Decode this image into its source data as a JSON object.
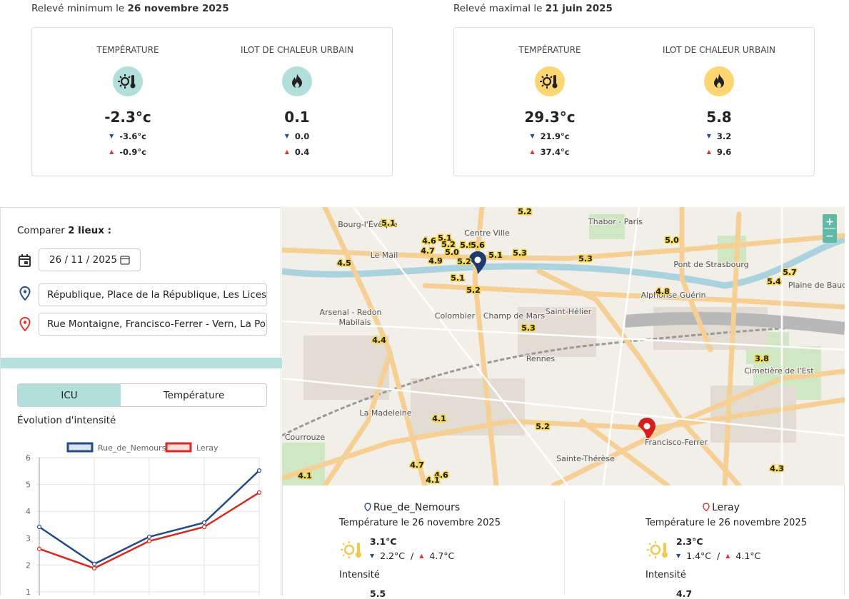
{
  "records": [
    {
      "prefix": "Relevé minimum le",
      "date": "26 novembre 2025",
      "metrics": [
        {
          "label": "TEMPÉRATURE",
          "value": "-2.3°c",
          "low": "-3.6°c",
          "high": "-0.9°c"
        },
        {
          "label": "ILOT DE CHALEUR URBAIN",
          "value": "0.1",
          "low": "0.0",
          "high": "0.4"
        }
      ]
    },
    {
      "prefix": "Relevé maximal le",
      "date": "21 juin 2025",
      "metrics": [
        {
          "label": "TEMPÉRATURE",
          "value": "29.3°c",
          "low": "21.9°c",
          "high": "37.4°c"
        },
        {
          "label": "ILOT DE CHALEUR URBAIN",
          "value": "5.8",
          "low": "3.2",
          "high": "9.6"
        }
      ]
    }
  ],
  "compare": {
    "prefix": "Comparer",
    "strong": "2 lieux :",
    "date": "26 / 11 / 2025",
    "place1": "République, Place de la République, Les Lices, (",
    "place2": "Rue Montaigne, Francisco-Ferrer - Vern, La Pon"
  },
  "tabs": [
    "ICU",
    "Température"
  ],
  "chart_title": "Évolution d'intensité",
  "chart_data": {
    "type": "line",
    "categories": [
      null,
      null,
      null,
      null,
      null
    ],
    "series": [
      {
        "name": "Rue_de_Nemours",
        "color": "#244a86",
        "values": [
          3.42,
          2.04,
          3.05,
          3.58,
          5.52
        ]
      },
      {
        "name": "Leray",
        "color": "#d9281d",
        "values": [
          2.6,
          1.88,
          2.89,
          3.42,
          4.7
        ]
      }
    ],
    "ylim": [
      1,
      6
    ],
    "yticks": [
      1,
      2,
      3,
      4,
      5,
      6
    ],
    "grid": true
  },
  "map": {
    "zoom": [
      "+",
      "−"
    ],
    "places": [
      "Bourg-l'Évêque",
      "Centre Ville",
      "Thabor - Paris",
      "Le Mail",
      "Arsenal - Redon",
      "Champ de Mars",
      "Saint-Hélier",
      "Alphonse Guérin",
      "Plaine de Baud",
      "Pont de Strasbourg",
      "Cimetière de l'Est",
      "La Madeleine",
      "Courrouze",
      "Sainte-Thérèse",
      "Francisco-Ferrer",
      "Colombier",
      "Rennes",
      "Mabilais"
    ],
    "values": [
      "5.2",
      "5.1",
      "4.6",
      "5.1",
      "5.2",
      "5.9",
      "5.6",
      "4.7",
      "5.0",
      "5.1",
      "5.3",
      "4.5",
      "4.9",
      "5.2",
      "5.1",
      "5.2",
      "5.3",
      "5.0",
      "5.7",
      "5.4",
      "4.8",
      "4.4",
      "5.3",
      "3.8",
      "4.1",
      "5.2",
      "4.7",
      "4.6",
      "4.1",
      "4.1",
      "4.3"
    ]
  },
  "locations": [
    {
      "name": "Rue_de_Nemours",
      "subtitle": "Température le 26 novembre 2025",
      "temp": "3.1°C",
      "low": "2.2°C",
      "high": "4.7°C",
      "sep": "/",
      "intensity_label": "Intensité",
      "intensity": "5.5"
    },
    {
      "name": "Leray",
      "subtitle": "Température le 26 novembre 2025",
      "temp": "2.3°C",
      "low": "1.4°C",
      "high": "4.1°C",
      "sep": "/",
      "intensity_label": "Intensité",
      "intensity": "4.7"
    }
  ]
}
